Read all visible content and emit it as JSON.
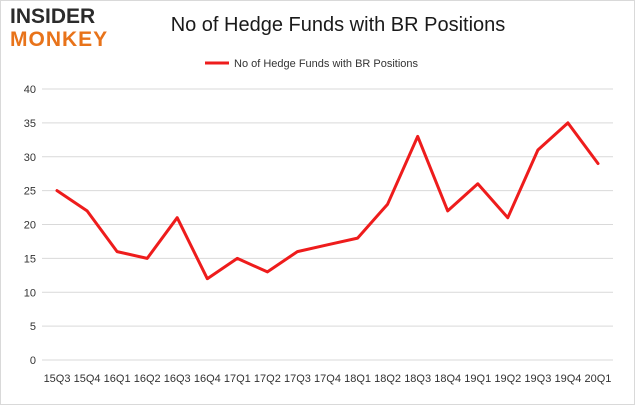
{
  "logo": {
    "line1": "INSIDER",
    "line2": "MONKEY"
  },
  "colors": {
    "series": "#ee1c1c",
    "grid": "#d9d9d9",
    "logo_accent": "#e8731a"
  },
  "chart_data": {
    "type": "line",
    "title": "No of Hedge Funds with BR Positions",
    "xlabel": "",
    "ylabel": "",
    "ylim": [
      0,
      40
    ],
    "yticks": [
      0,
      5,
      10,
      15,
      20,
      25,
      30,
      35,
      40
    ],
    "grid": true,
    "legend_position": "top-center",
    "categories": [
      "15Q3",
      "15Q4",
      "16Q1",
      "16Q2",
      "16Q3",
      "16Q4",
      "17Q1",
      "17Q2",
      "17Q3",
      "17Q4",
      "18Q1",
      "18Q2",
      "18Q3",
      "18Q4",
      "19Q1",
      "19Q2",
      "19Q3",
      "19Q4",
      "20Q1"
    ],
    "series": [
      {
        "name": "No of Hedge Funds with BR Positions",
        "values": [
          25,
          22,
          16,
          15,
          21,
          12,
          15,
          13,
          16,
          17,
          18,
          23,
          33,
          22,
          26,
          21,
          31,
          35,
          29
        ]
      }
    ]
  }
}
